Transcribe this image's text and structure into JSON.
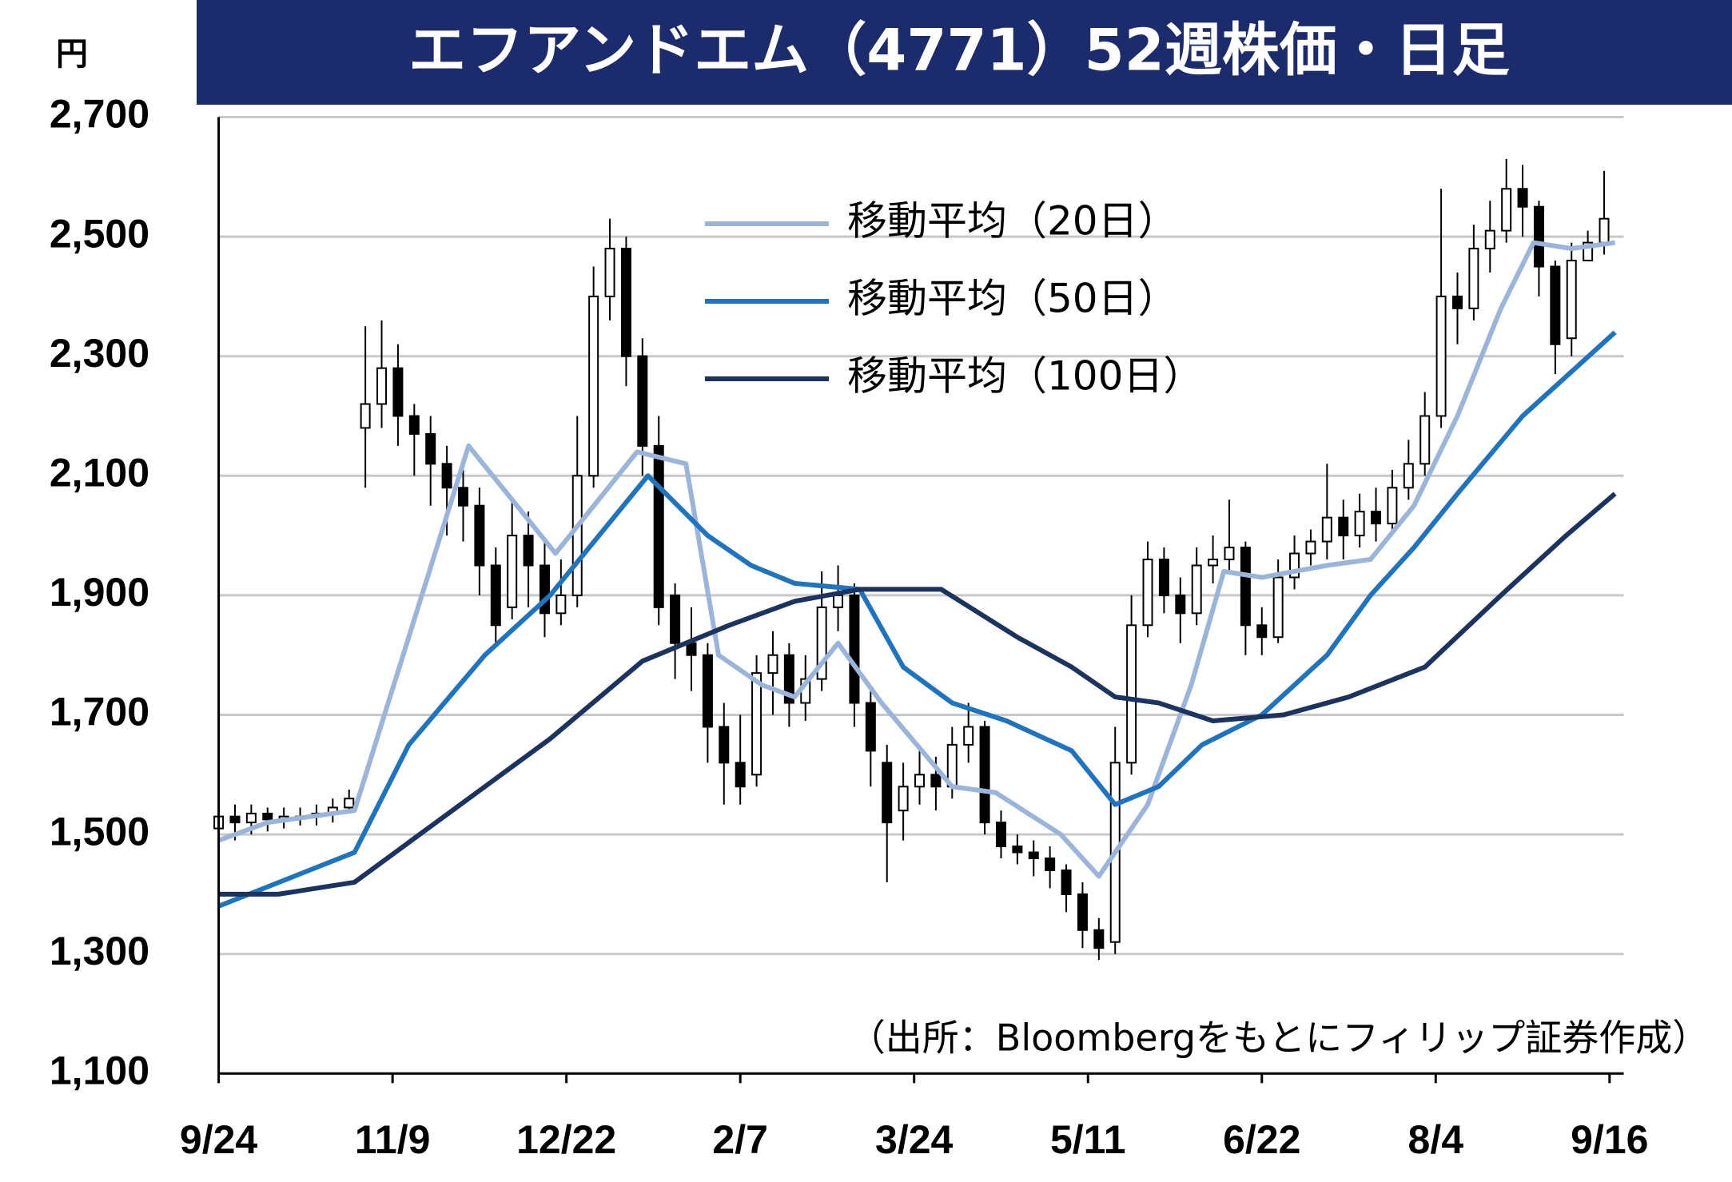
{
  "chart_data": {
    "type": "candlestick",
    "title": "エフアンドエム（4771）52週株価・日足",
    "y_unit": "円",
    "note": "（出所：Bloombergをもとにフィリップ証券作成）",
    "grid": true,
    "xlim": [
      0,
      258.6
    ],
    "xticks": [
      {
        "value": 0,
        "label": "9/24"
      },
      {
        "value": 32,
        "label": "11/9"
      },
      {
        "value": 64,
        "label": "12/22"
      },
      {
        "value": 96,
        "label": "2/7"
      },
      {
        "value": 128,
        "label": "3/24"
      },
      {
        "value": 160,
        "label": "5/11"
      },
      {
        "value": 192,
        "label": "6/22"
      },
      {
        "value": 224,
        "label": "8/4"
      },
      {
        "value": 256,
        "label": "9/16"
      }
    ],
    "ylim": [
      1100,
      2700
    ],
    "yticks": [
      {
        "value": 1100,
        "label": "1,100"
      },
      {
        "value": 1300,
        "label": "1,300"
      },
      {
        "value": 1500,
        "label": "1,500"
      },
      {
        "value": 1700,
        "label": "1,700"
      },
      {
        "value": 1900,
        "label": "1,900"
      },
      {
        "value": 2100,
        "label": "2,100"
      },
      {
        "value": 2300,
        "label": "2,300"
      },
      {
        "value": 2500,
        "label": "2,500"
      },
      {
        "value": 2700,
        "label": "2,700"
      }
    ],
    "candles": {
      "x": [
        0,
        3,
        6,
        9,
        12,
        15,
        18,
        21,
        24,
        27,
        30,
        33,
        36,
        39,
        42,
        45,
        48,
        51,
        54,
        57,
        60,
        63,
        66,
        69,
        72,
        75,
        78,
        81,
        84,
        87,
        90,
        93,
        96,
        99,
        102,
        105,
        108,
        111,
        114,
        117,
        120,
        123,
        126,
        129,
        132,
        135,
        138,
        141,
        144,
        147,
        150,
        153,
        156,
        159,
        162,
        165,
        168,
        171,
        174,
        177,
        180,
        183,
        186,
        189,
        192,
        195,
        198,
        201,
        204,
        207,
        210,
        213,
        216,
        219,
        222,
        225,
        228,
        231,
        234,
        237,
        240,
        243,
        246,
        249,
        252,
        255
      ],
      "open": [
        1510,
        1530,
        1520,
        1535,
        1525,
        1530,
        1530,
        1535,
        1545,
        2180,
        2220,
        2280,
        2200,
        2170,
        2120,
        2080,
        2050,
        1950,
        1880,
        2000,
        1950,
        1870,
        1900,
        2100,
        2400,
        2480,
        2300,
        2150,
        1900,
        1820,
        1800,
        1680,
        1620,
        1600,
        1770,
        1800,
        1720,
        1760,
        1880,
        1900,
        1720,
        1620,
        1540,
        1580,
        1600,
        1580,
        1650,
        1680,
        1520,
        1480,
        1470,
        1460,
        1440,
        1400,
        1340,
        1320,
        1620,
        1850,
        1960,
        1900,
        1870,
        1950,
        1960,
        1980,
        1850,
        1830,
        1930,
        1970,
        1990,
        2030,
        2000,
        2040,
        2020,
        2080,
        2120,
        2200,
        2400,
        2380,
        2480,
        2510,
        2580,
        2550,
        2450,
        2330,
        2460,
        2490
      ],
      "high": [
        1550,
        1550,
        1550,
        1545,
        1545,
        1545,
        1550,
        1560,
        1575,
        2350,
        2360,
        2320,
        2220,
        2200,
        2150,
        2110,
        2080,
        1980,
        2060,
        2040,
        1990,
        1960,
        2200,
        2450,
        2530,
        2500,
        2330,
        2200,
        1920,
        1880,
        1820,
        1720,
        1700,
        1800,
        1840,
        1820,
        1800,
        1940,
        1950,
        1920,
        1750,
        1650,
        1620,
        1640,
        1630,
        1680,
        1720,
        1690,
        1540,
        1500,
        1490,
        1480,
        1450,
        1420,
        1360,
        1680,
        1900,
        1990,
        1980,
        1930,
        1980,
        2000,
        2060,
        1990,
        1880,
        1960,
        2000,
        2010,
        2120,
        2060,
        2070,
        2080,
        2110,
        2160,
        2240,
        2580,
        2440,
        2520,
        2560,
        2630,
        2620,
        2560,
        2460,
        2490,
        2510,
        2610
      ],
      "low": [
        1490,
        1490,
        1500,
        1505,
        1510,
        1515,
        1515,
        1520,
        1535,
        2080,
        2180,
        2150,
        2100,
        2050,
        2000,
        1990,
        1900,
        1820,
        1860,
        1880,
        1830,
        1850,
        1880,
        2080,
        2360,
        2250,
        2100,
        1850,
        1760,
        1740,
        1620,
        1550,
        1550,
        1580,
        1700,
        1680,
        1690,
        1740,
        1840,
        1680,
        1580,
        1420,
        1490,
        1550,
        1540,
        1560,
        1620,
        1500,
        1460,
        1450,
        1430,
        1410,
        1370,
        1310,
        1290,
        1300,
        1600,
        1830,
        1870,
        1820,
        1850,
        1920,
        1940,
        1800,
        1800,
        1820,
        1910,
        1950,
        1960,
        1960,
        1980,
        1990,
        2000,
        2060,
        2100,
        2180,
        2320,
        2360,
        2440,
        2490,
        2500,
        2400,
        2270,
        2300,
        2460,
        2470
      ],
      "close": [
        1530,
        1520,
        1535,
        1525,
        1530,
        1530,
        1535,
        1545,
        1560,
        2220,
        2280,
        2200,
        2170,
        2120,
        2080,
        2050,
        1950,
        1850,
        2000,
        1950,
        1870,
        1900,
        2100,
        2400,
        2480,
        2300,
        2150,
        1880,
        1820,
        1800,
        1680,
        1620,
        1580,
        1770,
        1800,
        1720,
        1760,
        1880,
        1900,
        1720,
        1640,
        1520,
        1580,
        1600,
        1580,
        1650,
        1680,
        1520,
        1480,
        1470,
        1460,
        1440,
        1400,
        1340,
        1310,
        1620,
        1850,
        1960,
        1900,
        1870,
        1950,
        1960,
        1980,
        1850,
        1830,
        1930,
        1970,
        1990,
        2030,
        2000,
        2040,
        2020,
        2080,
        2120,
        2200,
        2400,
        2380,
        2480,
        2510,
        2580,
        2550,
        2450,
        2320,
        2460,
        2490,
        2530
      ]
    },
    "series": [
      {
        "name": "移動平均（20日）",
        "color": "#9bb5da",
        "x": [
          0,
          9,
          25,
          46,
          62,
          77,
          86,
          92,
          100,
          106,
          114,
          122,
          135,
          143,
          155,
          162,
          171,
          179,
          185,
          192,
          204,
          212,
          220,
          228,
          236,
          242,
          249,
          257
        ],
        "values": [
          1490,
          1520,
          1540,
          2150,
          1970,
          2140,
          2120,
          1800,
          1750,
          1730,
          1820,
          1720,
          1580,
          1570,
          1500,
          1430,
          1550,
          1750,
          1940,
          1930,
          1950,
          1960,
          2050,
          2200,
          2380,
          2490,
          2480,
          2490
        ]
      },
      {
        "name": "移動平均（50日）",
        "color": "#1f74bf",
        "x": [
          0,
          25,
          35,
          49,
          61,
          79,
          90,
          98,
          106,
          118,
          126,
          135,
          145,
          157,
          165,
          173,
          181,
          192,
          204,
          212,
          220,
          228,
          240,
          257
        ],
        "values": [
          1380,
          1470,
          1650,
          1800,
          1900,
          2100,
          2000,
          1950,
          1920,
          1910,
          1780,
          1720,
          1690,
          1640,
          1550,
          1580,
          1650,
          1700,
          1800,
          1900,
          1980,
          2070,
          2200,
          2340
        ]
      },
      {
        "name": "移動平均（100日）",
        "color": "#1c3360",
        "x": [
          0,
          11,
          25,
          37,
          49,
          61,
          78,
          94,
          106,
          118,
          133,
          147,
          157,
          165,
          173,
          183,
          196,
          208,
          222,
          236,
          248,
          257
        ],
        "values": [
          1400,
          1400,
          1420,
          1500,
          1580,
          1660,
          1790,
          1850,
          1890,
          1910,
          1910,
          1830,
          1780,
          1730,
          1720,
          1690,
          1700,
          1730,
          1780,
          1900,
          2000,
          2070
        ]
      }
    ]
  }
}
